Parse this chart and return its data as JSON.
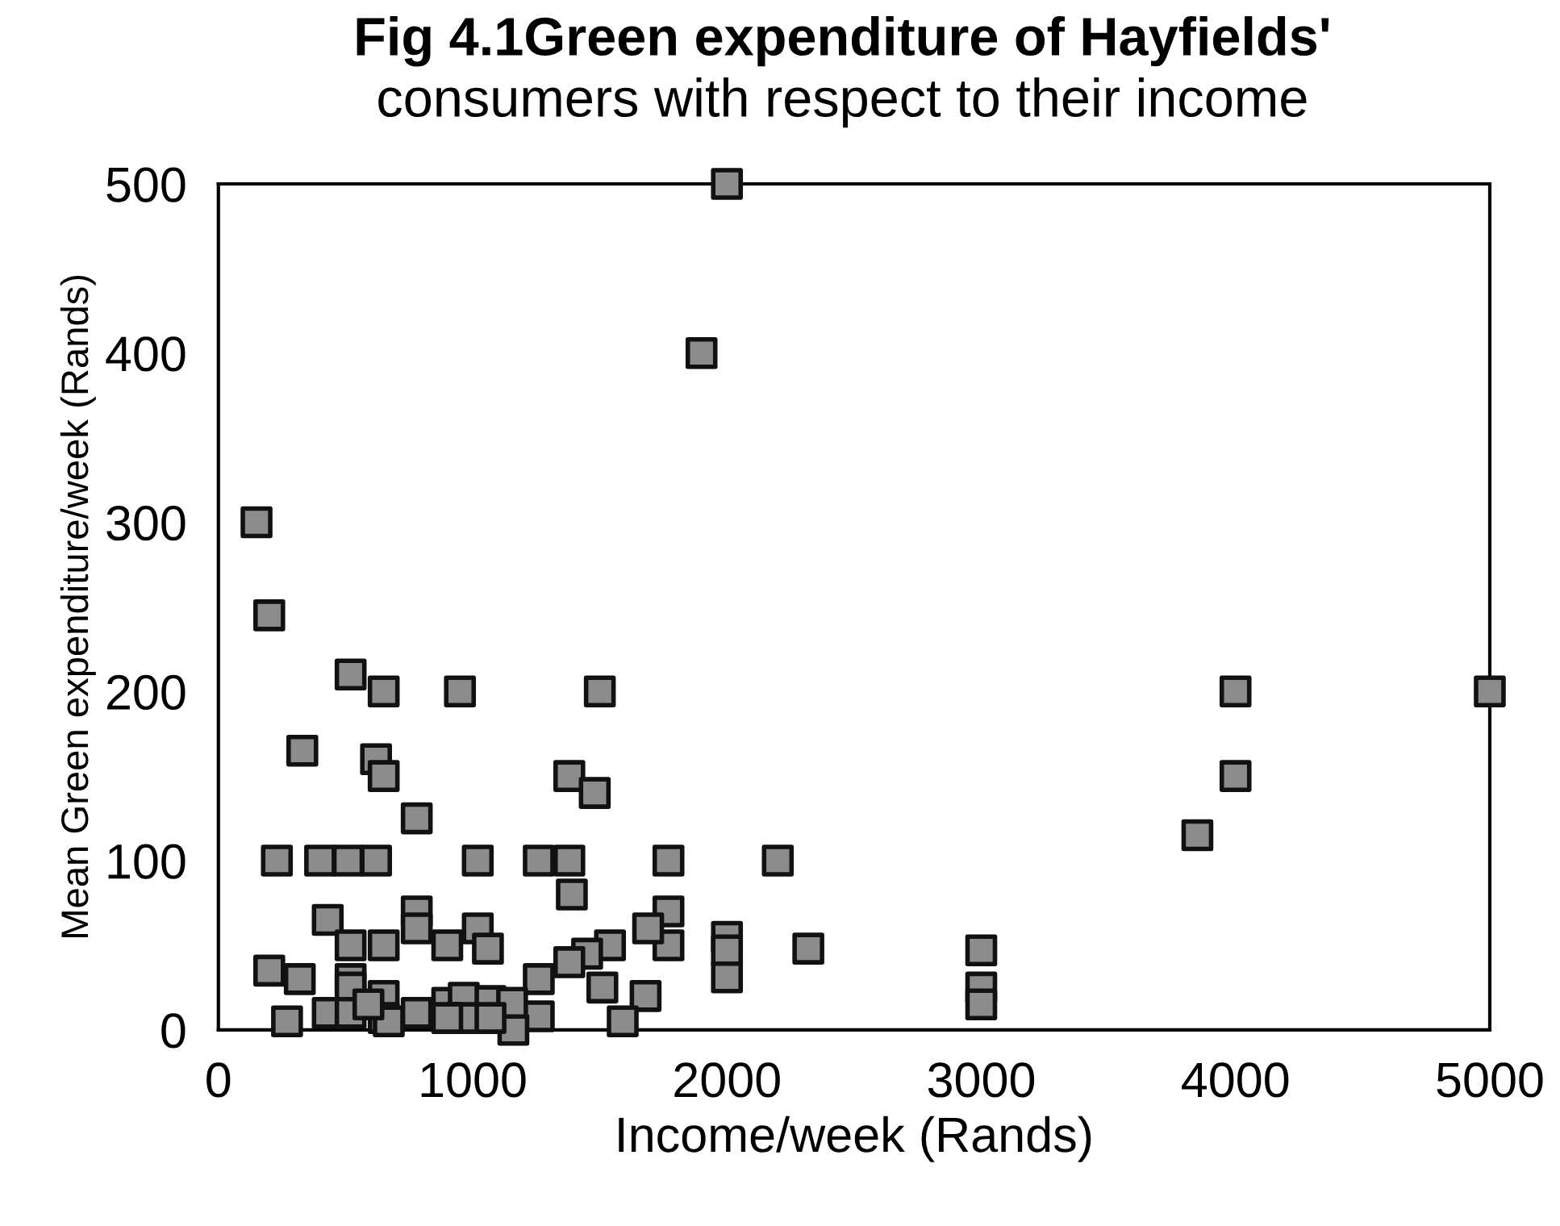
{
  "chart_data": {
    "type": "scatter",
    "title": "Fig 4.1Green expenditure of Hayfields'",
    "subtitle": "consumers with respect to their income",
    "xlabel": "Income/week (Rands)",
    "ylabel": "Mean Green expenditure/week (Rands)",
    "xlim": [
      0,
      5000
    ],
    "ylim": [
      0,
      500
    ],
    "xticks": [
      0,
      1000,
      2000,
      3000,
      4000,
      5000
    ],
    "yticks": [
      0,
      100,
      200,
      300,
      400,
      500
    ],
    "grid": false,
    "legend": false,
    "marker": "square",
    "series": [
      {
        "color": "#8c8c8c",
        "x": [
          150,
          200,
          520,
          650,
          950,
          1500,
          330,
          620,
          650,
          1380,
          1480,
          780,
          230,
          400,
          510,
          620,
          1020,
          1260,
          1380,
          1770,
          1390,
          1770,
          1770,
          1690,
          1540,
          1450,
          1510,
          1680,
          1590,
          1380,
          1260,
          1260,
          1160,
          430,
          780,
          780,
          520,
          650,
          900,
          1020,
          1060,
          200,
          320,
          520,
          520,
          270,
          430,
          520,
          650,
          650,
          780,
          900,
          965,
          1070,
          1155,
          965,
          1070,
          900,
          670,
          590,
          2000,
          1900,
          2200,
          2000,
          2000,
          2000,
          2320,
          3000,
          3000,
          3000,
          3850,
          4000,
          4000,
          5000
        ],
        "values": [
          300,
          245,
          210,
          200,
          200,
          200,
          165,
          160,
          150,
          150,
          140,
          125,
          100,
          100,
          100,
          100,
          100,
          100,
          100,
          100,
          80,
          70,
          50,
          60,
          50,
          45,
          25,
          20,
          5,
          40,
          30,
          8,
          0,
          65,
          70,
          60,
          50,
          50,
          50,
          60,
          48,
          35,
          30,
          30,
          25,
          5,
          10,
          10,
          20,
          7,
          10,
          16,
          19,
          17,
          16,
          7,
          7,
          7,
          5,
          15,
          500,
          400,
          100,
          55,
          47,
          31,
          48,
          47,
          25,
          15,
          115,
          200,
          150,
          200
        ]
      }
    ]
  }
}
